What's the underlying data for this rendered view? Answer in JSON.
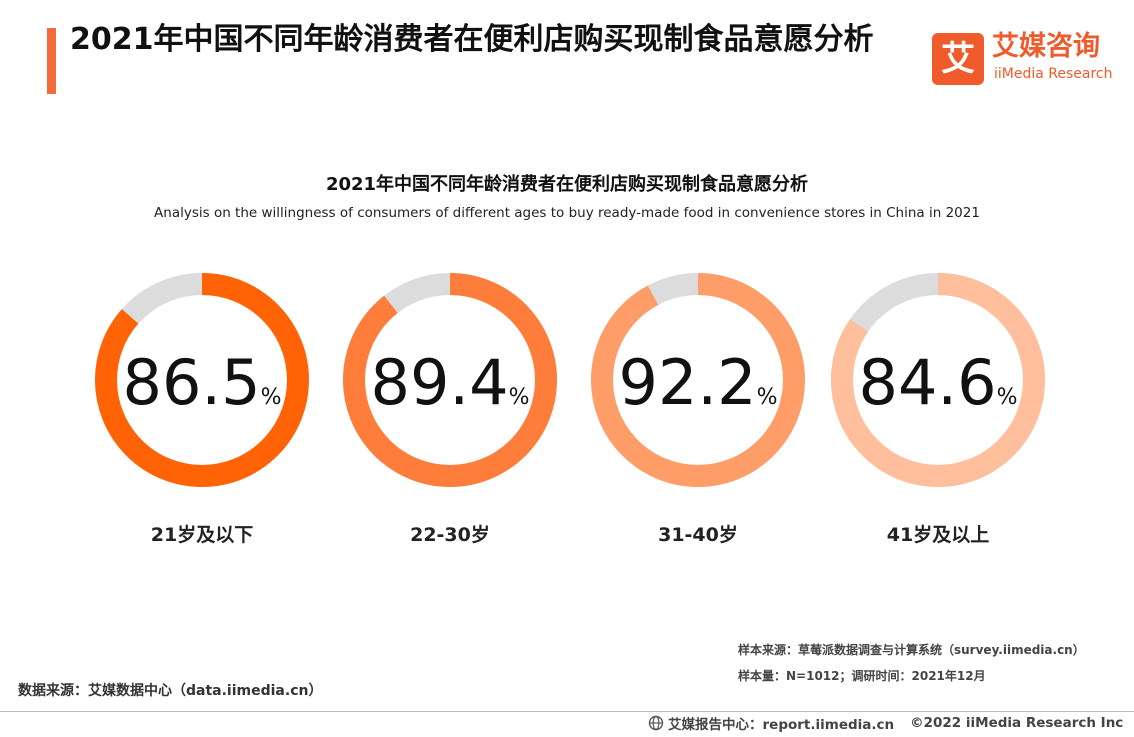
{
  "header": {
    "title": "2021年中国不同年龄消费者在便利店购买现制食品意愿分析"
  },
  "logo": {
    "mark": "艾",
    "name_cn": "艾媒咨询",
    "name_en": "iiMedia Research"
  },
  "chart_data": {
    "type": "pie",
    "title": "2021年中国不同年龄消费者在便利店购买现制食品意愿分析",
    "subtitle": "Analysis on the willingness of consumers of different ages to buy ready-made food in convenience stores in China in 2021",
    "unit": "%",
    "categories": [
      "21岁及以下",
      "22-30岁",
      "31-40岁",
      "41岁及以上"
    ],
    "values": [
      86.5,
      89.4,
      92.2,
      84.6
    ],
    "value_labels": [
      "86.5",
      "89.4",
      "92.2",
      "84.6"
    ],
    "colors": [
      "#ff6305",
      "#ff7d3b",
      "#ff9d68",
      "#ffbf9c"
    ],
    "remainder_color": "#dcdcdc"
  },
  "notes": {
    "sample_source": "样本来源：草莓派数据调查与计算系统（survey.iimedia.cn）",
    "sample_size": "样本量：N=1012；调研时间：2021年12月"
  },
  "data_source": "数据来源：艾媒数据中心（data.iimedia.cn）",
  "footer": {
    "report_center": "艾媒报告中心：report.iimedia.cn",
    "copyright": "©2022  iiMedia Research  Inc",
    "icon": "globe-icon"
  }
}
